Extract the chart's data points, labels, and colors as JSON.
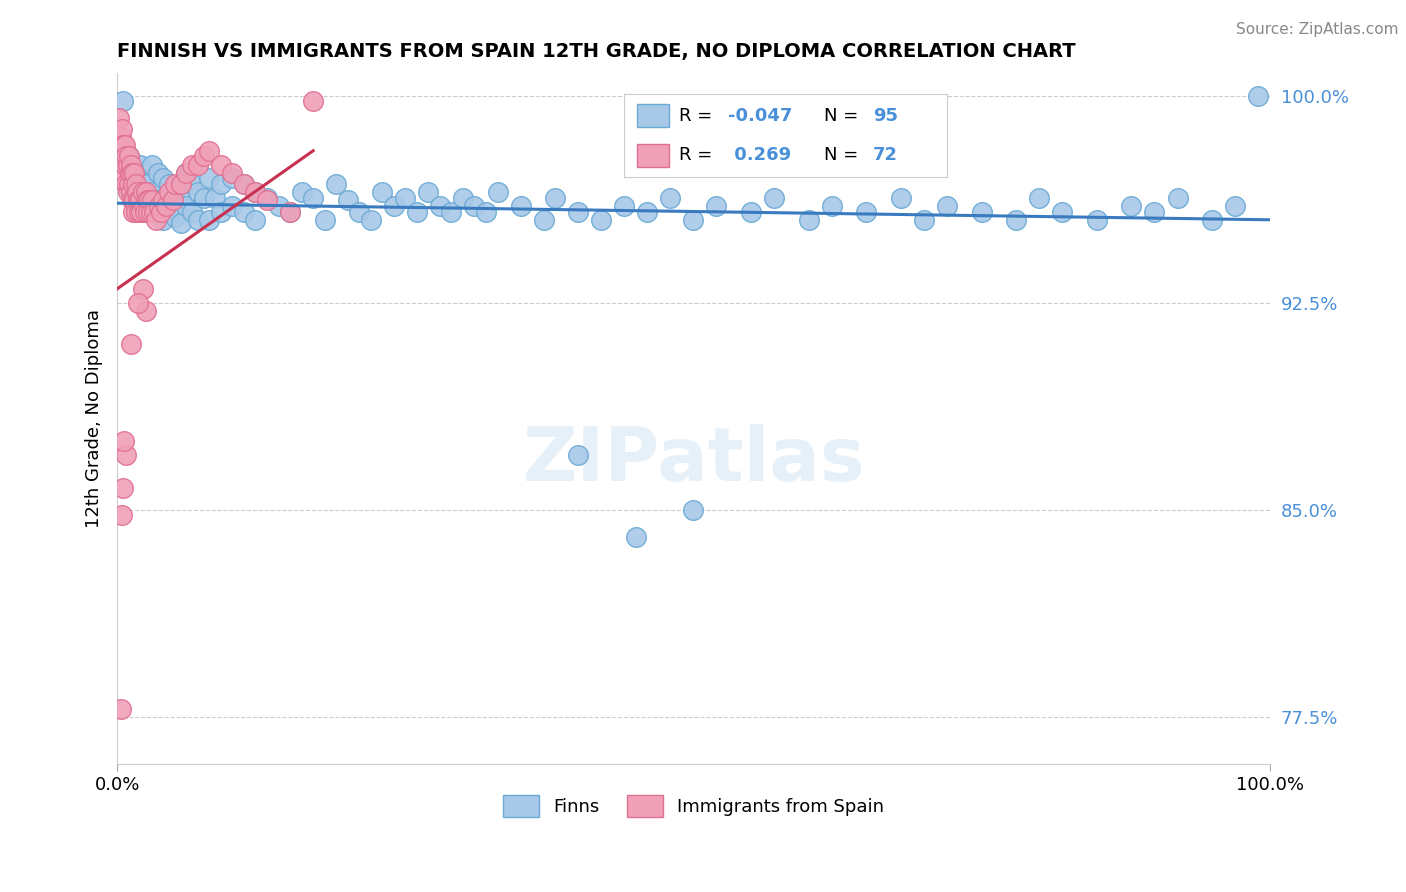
{
  "title": "FINNISH VS IMMIGRANTS FROM SPAIN 12TH GRADE, NO DIPLOMA CORRELATION CHART",
  "source": "Source: ZipAtlas.com",
  "ylabel": "12th Grade, No Diploma",
  "xlim": [
    0.0,
    1.0
  ],
  "ylim": [
    0.758,
    1.008
  ],
  "ytick_vals": [
    0.775,
    0.85,
    0.925,
    1.0
  ],
  "ytick_labels": [
    "77.5%",
    "85.0%",
    "92.5%",
    "100.0%"
  ],
  "xtick_vals": [
    0.0,
    1.0
  ],
  "xtick_labels": [
    "0.0%",
    "100.0%"
  ],
  "blue_color": "#a8c8e8",
  "pink_color": "#f0a0b8",
  "blue_edge": "#6aaad5",
  "pink_edge": "#e07090",
  "trend_blue": "#3a7abf",
  "trend_pink": "#c83050",
  "blue_trend_x": [
    0.0,
    1.0
  ],
  "blue_trend_y": [
    0.961,
    0.955
  ],
  "pink_trend_x": [
    0.0,
    0.17
  ],
  "pink_trend_y": [
    0.93,
    0.98
  ],
  "blue_scatter_x": [
    0.005,
    0.01,
    0.01,
    0.015,
    0.015,
    0.02,
    0.02,
    0.02,
    0.025,
    0.025,
    0.03,
    0.03,
    0.03,
    0.035,
    0.035,
    0.04,
    0.04,
    0.04,
    0.045,
    0.045,
    0.05,
    0.05,
    0.055,
    0.055,
    0.06,
    0.06,
    0.065,
    0.065,
    0.07,
    0.07,
    0.075,
    0.08,
    0.08,
    0.085,
    0.09,
    0.09,
    0.1,
    0.1,
    0.11,
    0.11,
    0.12,
    0.12,
    0.13,
    0.14,
    0.15,
    0.16,
    0.17,
    0.18,
    0.19,
    0.2,
    0.21,
    0.22,
    0.23,
    0.24,
    0.25,
    0.26,
    0.27,
    0.28,
    0.29,
    0.3,
    0.31,
    0.32,
    0.33,
    0.35,
    0.37,
    0.38,
    0.4,
    0.42,
    0.44,
    0.46,
    0.48,
    0.5,
    0.52,
    0.55,
    0.57,
    0.6,
    0.62,
    0.65,
    0.68,
    0.7,
    0.72,
    0.75,
    0.78,
    0.8,
    0.82,
    0.85,
    0.88,
    0.9,
    0.92,
    0.95,
    0.97,
    0.99,
    0.5,
    0.45,
    0.4
  ],
  "blue_scatter_y": [
    0.998,
    0.978,
    0.968,
    0.972,
    0.962,
    0.975,
    0.97,
    0.965,
    0.968,
    0.96,
    0.975,
    0.965,
    0.958,
    0.972,
    0.962,
    0.97,
    0.963,
    0.955,
    0.968,
    0.958,
    0.965,
    0.956,
    0.963,
    0.954,
    0.972,
    0.96,
    0.968,
    0.958,
    0.965,
    0.955,
    0.963,
    0.97,
    0.955,
    0.963,
    0.968,
    0.958,
    0.97,
    0.96,
    0.968,
    0.958,
    0.965,
    0.955,
    0.963,
    0.96,
    0.958,
    0.965,
    0.963,
    0.955,
    0.968,
    0.962,
    0.958,
    0.955,
    0.965,
    0.96,
    0.963,
    0.958,
    0.965,
    0.96,
    0.958,
    0.963,
    0.96,
    0.958,
    0.965,
    0.96,
    0.955,
    0.963,
    0.958,
    0.955,
    0.96,
    0.958,
    0.963,
    0.955,
    0.96,
    0.958,
    0.963,
    0.955,
    0.96,
    0.958,
    0.963,
    0.955,
    0.96,
    0.958,
    0.955,
    0.963,
    0.958,
    0.955,
    0.96,
    0.958,
    0.963,
    0.955,
    0.96,
    1.0,
    0.85,
    0.84,
    0.87
  ],
  "pink_scatter_x": [
    0.002,
    0.003,
    0.004,
    0.004,
    0.005,
    0.005,
    0.006,
    0.006,
    0.007,
    0.007,
    0.008,
    0.008,
    0.009,
    0.009,
    0.01,
    0.01,
    0.011,
    0.012,
    0.012,
    0.013,
    0.013,
    0.014,
    0.014,
    0.015,
    0.015,
    0.016,
    0.016,
    0.017,
    0.018,
    0.019,
    0.02,
    0.021,
    0.022,
    0.023,
    0.024,
    0.025,
    0.026,
    0.027,
    0.028,
    0.029,
    0.03,
    0.032,
    0.034,
    0.036,
    0.038,
    0.04,
    0.042,
    0.045,
    0.048,
    0.05,
    0.055,
    0.06,
    0.065,
    0.07,
    0.075,
    0.08,
    0.09,
    0.1,
    0.11,
    0.12,
    0.13,
    0.15,
    0.17,
    0.022,
    0.025,
    0.018,
    0.012,
    0.008,
    0.006,
    0.005,
    0.004,
    0.003
  ],
  "pink_scatter_y": [
    0.992,
    0.985,
    0.988,
    0.978,
    0.982,
    0.972,
    0.978,
    0.97,
    0.982,
    0.975,
    0.978,
    0.968,
    0.975,
    0.965,
    0.978,
    0.968,
    0.972,
    0.975,
    0.965,
    0.972,
    0.962,
    0.968,
    0.958,
    0.972,
    0.962,
    0.968,
    0.958,
    0.965,
    0.962,
    0.958,
    0.962,
    0.958,
    0.965,
    0.96,
    0.958,
    0.965,
    0.962,
    0.958,
    0.962,
    0.958,
    0.962,
    0.958,
    0.955,
    0.96,
    0.958,
    0.962,
    0.96,
    0.965,
    0.962,
    0.968,
    0.968,
    0.972,
    0.975,
    0.975,
    0.978,
    0.98,
    0.975,
    0.972,
    0.968,
    0.965,
    0.962,
    0.958,
    0.998,
    0.93,
    0.922,
    0.925,
    0.91,
    0.87,
    0.875,
    0.858,
    0.848,
    0.778
  ]
}
